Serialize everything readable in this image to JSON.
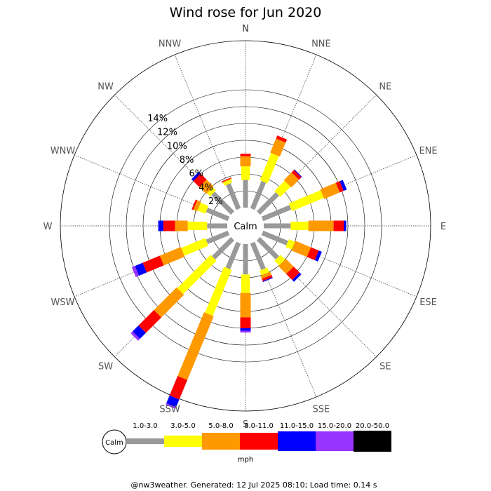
{
  "chart_data": {
    "type": "wind-rose",
    "title": "Wind rose for Jun 2020",
    "directions": [
      "N",
      "NNE",
      "NE",
      "ENE",
      "E",
      "ESE",
      "SE",
      "SSE",
      "S",
      "SSW",
      "SW",
      "WSW",
      "W",
      "WNW",
      "NW",
      "NNW"
    ],
    "ring_labels": [
      "2%",
      "4%",
      "6%",
      "8%",
      "10%",
      "12%",
      "14%"
    ],
    "ring_values": [
      2,
      4,
      6,
      8,
      10,
      12,
      14
    ],
    "calm_label": "Calm",
    "unit_label": "mph",
    "speed_bins": [
      {
        "label": "1.0-3.0",
        "color": "#999999"
      },
      {
        "label": "3.0-5.0",
        "color": "#ffff00"
      },
      {
        "label": "5.0-8.0",
        "color": "#ff9900"
      },
      {
        "label": "8.0-11.0",
        "color": "#ff0000"
      },
      {
        "label": "11.0-15.0",
        "color": "#0000ff"
      },
      {
        "label": "15.0-20.0",
        "color": "#9933ff"
      },
      {
        "label": "20.0-50.0",
        "color": "#000000"
      }
    ],
    "cumulative_percent": {
      "N": [
        3.3,
        4.9,
        6.1,
        6.4,
        6.4,
        6.4,
        6.4
      ],
      "NNE": [
        3.5,
        7.0,
        8.8,
        9.2,
        9.2,
        9.2,
        9.2
      ],
      "NE": [
        3.2,
        4.9,
        6.2,
        6.6,
        6.7,
        6.7,
        6.7
      ],
      "ENE": [
        3.6,
        7.7,
        9.7,
        10.2,
        10.6,
        10.6,
        10.6
      ],
      "E": [
        3.2,
        5.3,
        8.3,
        9.5,
        9.8,
        9.8,
        9.8
      ],
      "ESE": [
        3.2,
        4.0,
        6.0,
        7.0,
        7.4,
        7.4,
        7.4
      ],
      "SE": [
        3.2,
        4.0,
        5.3,
        6.3,
        6.6,
        6.6,
        6.6
      ],
      "SSE": [
        3.4,
        4.0,
        4.4,
        4.7,
        4.8,
        4.8,
        4.8
      ],
      "S": [
        3.6,
        5.8,
        8.7,
        10.0,
        10.3,
        10.5,
        10.5
      ],
      "SSW": [
        3.3,
        9.2,
        17.4,
        19.9,
        20.9,
        21.1,
        21.1
      ],
      "SW": [
        3.2,
        8.8,
        12.6,
        15.2,
        16.2,
        16.5,
        16.5
      ],
      "WSW": [
        2.8,
        5.9,
        8.6,
        10.8,
        11.8,
        12.2,
        12.2
      ],
      "W": [
        2.4,
        4.7,
        6.2,
        7.6,
        8.2,
        8.2,
        8.2
      ],
      "WNW": [
        2.8,
        3.8,
        4.3,
        4.5,
        4.5,
        4.5,
        4.5
      ],
      "NW": [
        3.3,
        3.8,
        5.0,
        6.0,
        6.3,
        6.3,
        6.3
      ],
      "NNW": [
        3.2,
        3.6,
        3.7,
        3.8,
        3.8,
        3.8,
        3.8
      ]
    }
  },
  "footer": "@nw3weather. Generated: 12 Jul 2025 08:10; Load time: 0.14 s"
}
